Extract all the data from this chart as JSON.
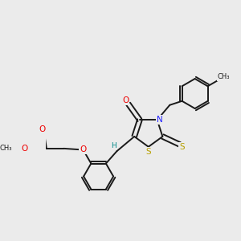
{
  "background_color": "#ebebeb",
  "atom_colors": {
    "C": "#1a1a1a",
    "N": "#2020ff",
    "O": "#ee0000",
    "S": "#b8a000",
    "H": "#008888"
  },
  "figsize": [
    3.0,
    3.0
  ],
  "dpi": 100
}
